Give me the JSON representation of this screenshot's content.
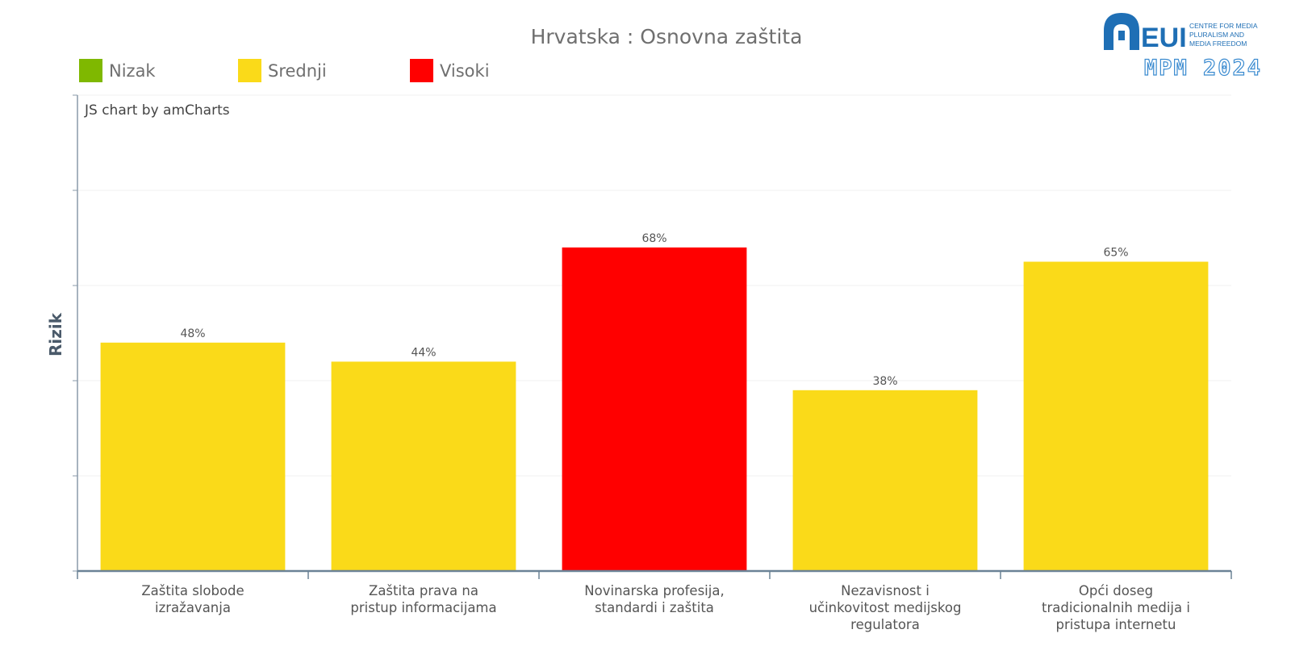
{
  "chart_data": {
    "type": "bar",
    "title": "Hrvatska : Osnovna zaštita",
    "ylabel": "Rizik",
    "xlabel": "",
    "ylim": [
      0,
      100
    ],
    "grid": true,
    "legend_position": "top-left",
    "credit": "JS chart by amCharts",
    "legend": [
      {
        "name": "Nizak",
        "color": "#7fb800"
      },
      {
        "name": "Srednji",
        "color": "#fada19"
      },
      {
        "name": "Visoki",
        "color": "#ff0000"
      }
    ],
    "categories": [
      [
        "Zaštita slobode",
        "izražavanja"
      ],
      [
        "Zaštita prava na",
        "pristup informacijama"
      ],
      [
        "Novinarska profesija,",
        "standardi i zaštita"
      ],
      [
        "Nezavisnost i",
        "učinkovitost medijskog",
        "regulatora"
      ],
      [
        "Opći doseg",
        "tradicionalnih medija i",
        "pristupa internetu"
      ]
    ],
    "values": [
      48,
      44,
      68,
      38,
      65
    ],
    "value_labels": [
      "48%",
      "44%",
      "68%",
      "38%",
      "65%"
    ],
    "bar_levels": [
      "Srednji",
      "Srednji",
      "Visoki",
      "Srednji",
      "Srednji"
    ]
  },
  "logo": {
    "name": "EUI",
    "lines": [
      "CENTRE FOR MEDIA",
      "PLURALISM AND",
      "MEDIA FREEDOM"
    ],
    "badge": "MPM 2024",
    "color": "#1f6fb5"
  }
}
